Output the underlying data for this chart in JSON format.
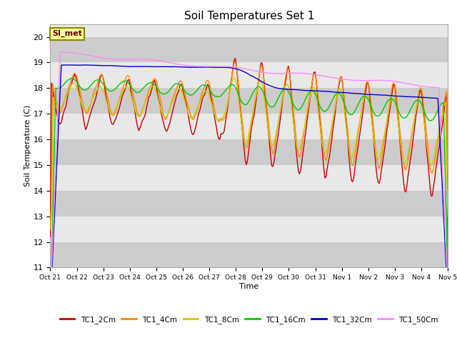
{
  "title": "Soil Temperatures Set 1",
  "xlabel": "Time",
  "ylabel": "Soil Temperature (C)",
  "ylim": [
    11.0,
    20.5
  ],
  "yticks": [
    11.0,
    12.0,
    13.0,
    14.0,
    15.0,
    16.0,
    17.0,
    18.0,
    19.0,
    20.0
  ],
  "xtick_labels": [
    "Oct 21",
    "Oct 22",
    "Oct 23",
    "Oct 24",
    "Oct 25",
    "Oct 26",
    "Oct 27",
    "Oct 28",
    "Oct 29",
    "Oct 30",
    "Oct 31",
    "Nov 1",
    "Nov 2",
    "Nov 3",
    "Nov 4",
    "Nov 5"
  ],
  "colors": {
    "TC1_2Cm": "#cc0000",
    "TC1_4Cm": "#ff8800",
    "TC1_8Cm": "#cccc00",
    "TC1_16Cm": "#00cc00",
    "TC1_32Cm": "#0000cc",
    "TC1_50Cm": "#ff88ff"
  },
  "background_color": "#ffffff",
  "annotation_label": "SI_met",
  "annotation_bg": "#ffff99",
  "annotation_border": "#888800",
  "figsize": [
    6.4,
    4.8
  ],
  "dpi": 100
}
